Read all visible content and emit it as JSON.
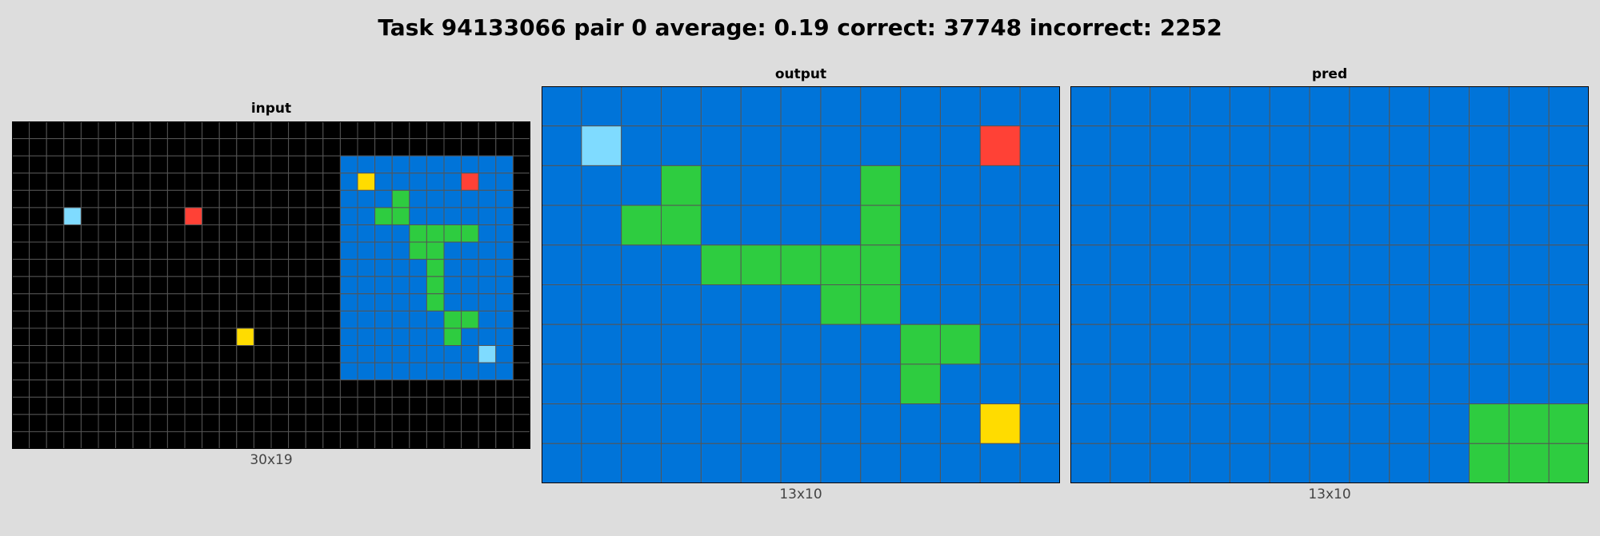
{
  "title": "Task 94133066 pair 0 average: 0.19 correct: 37748 incorrect: 2252",
  "palette": {
    "0": "#000000",
    "1": "#0074D9",
    "2": "#FF4136",
    "3": "#2ECC40",
    "4": "#FFDC00",
    "8": "#7FDBFF"
  },
  "panels": [
    {
      "label": "input",
      "size_label": "30x19",
      "grid": [
        "000000000000000000000000000000",
        "000000000000000000000000000000",
        "000000000000000000011111111110",
        "000000000000000000014111112110",
        "000000000000000000011131111110",
        "000800000020000000011331111110",
        "000000000000000000011113333110",
        "000000000000000000011113311110",
        "000000000000000000011111311110",
        "000000000000000000011111311110",
        "000000000000000000011111311110",
        "000000000000000000011111133110",
        "000000000000040000011111131110",
        "000000000000000000011111111810",
        "000000000000000000011111111110",
        "000000000000000000000000000000",
        "000000000000000000000000000000",
        "000000000000000000000000000000",
        "000000000000000000000000000000"
      ]
    },
    {
      "label": "output",
      "size_label": "13x10",
      "grid": [
        "1111111111111",
        "1811111111121",
        "1113111131111",
        "1133111131111",
        "1111333331111",
        "1111111331111",
        "1111111113311",
        "1111111113111",
        "1111111111141",
        "1111111111111"
      ]
    },
    {
      "label": "pred",
      "size_label": "13x10",
      "grid": [
        "1111111111111",
        "1111111111111",
        "1111111111111",
        "1111111111111",
        "1111111111111",
        "1111111111111",
        "1111111111111",
        "1111111111111",
        "1111111111333",
        "1111111111333"
      ]
    }
  ]
}
